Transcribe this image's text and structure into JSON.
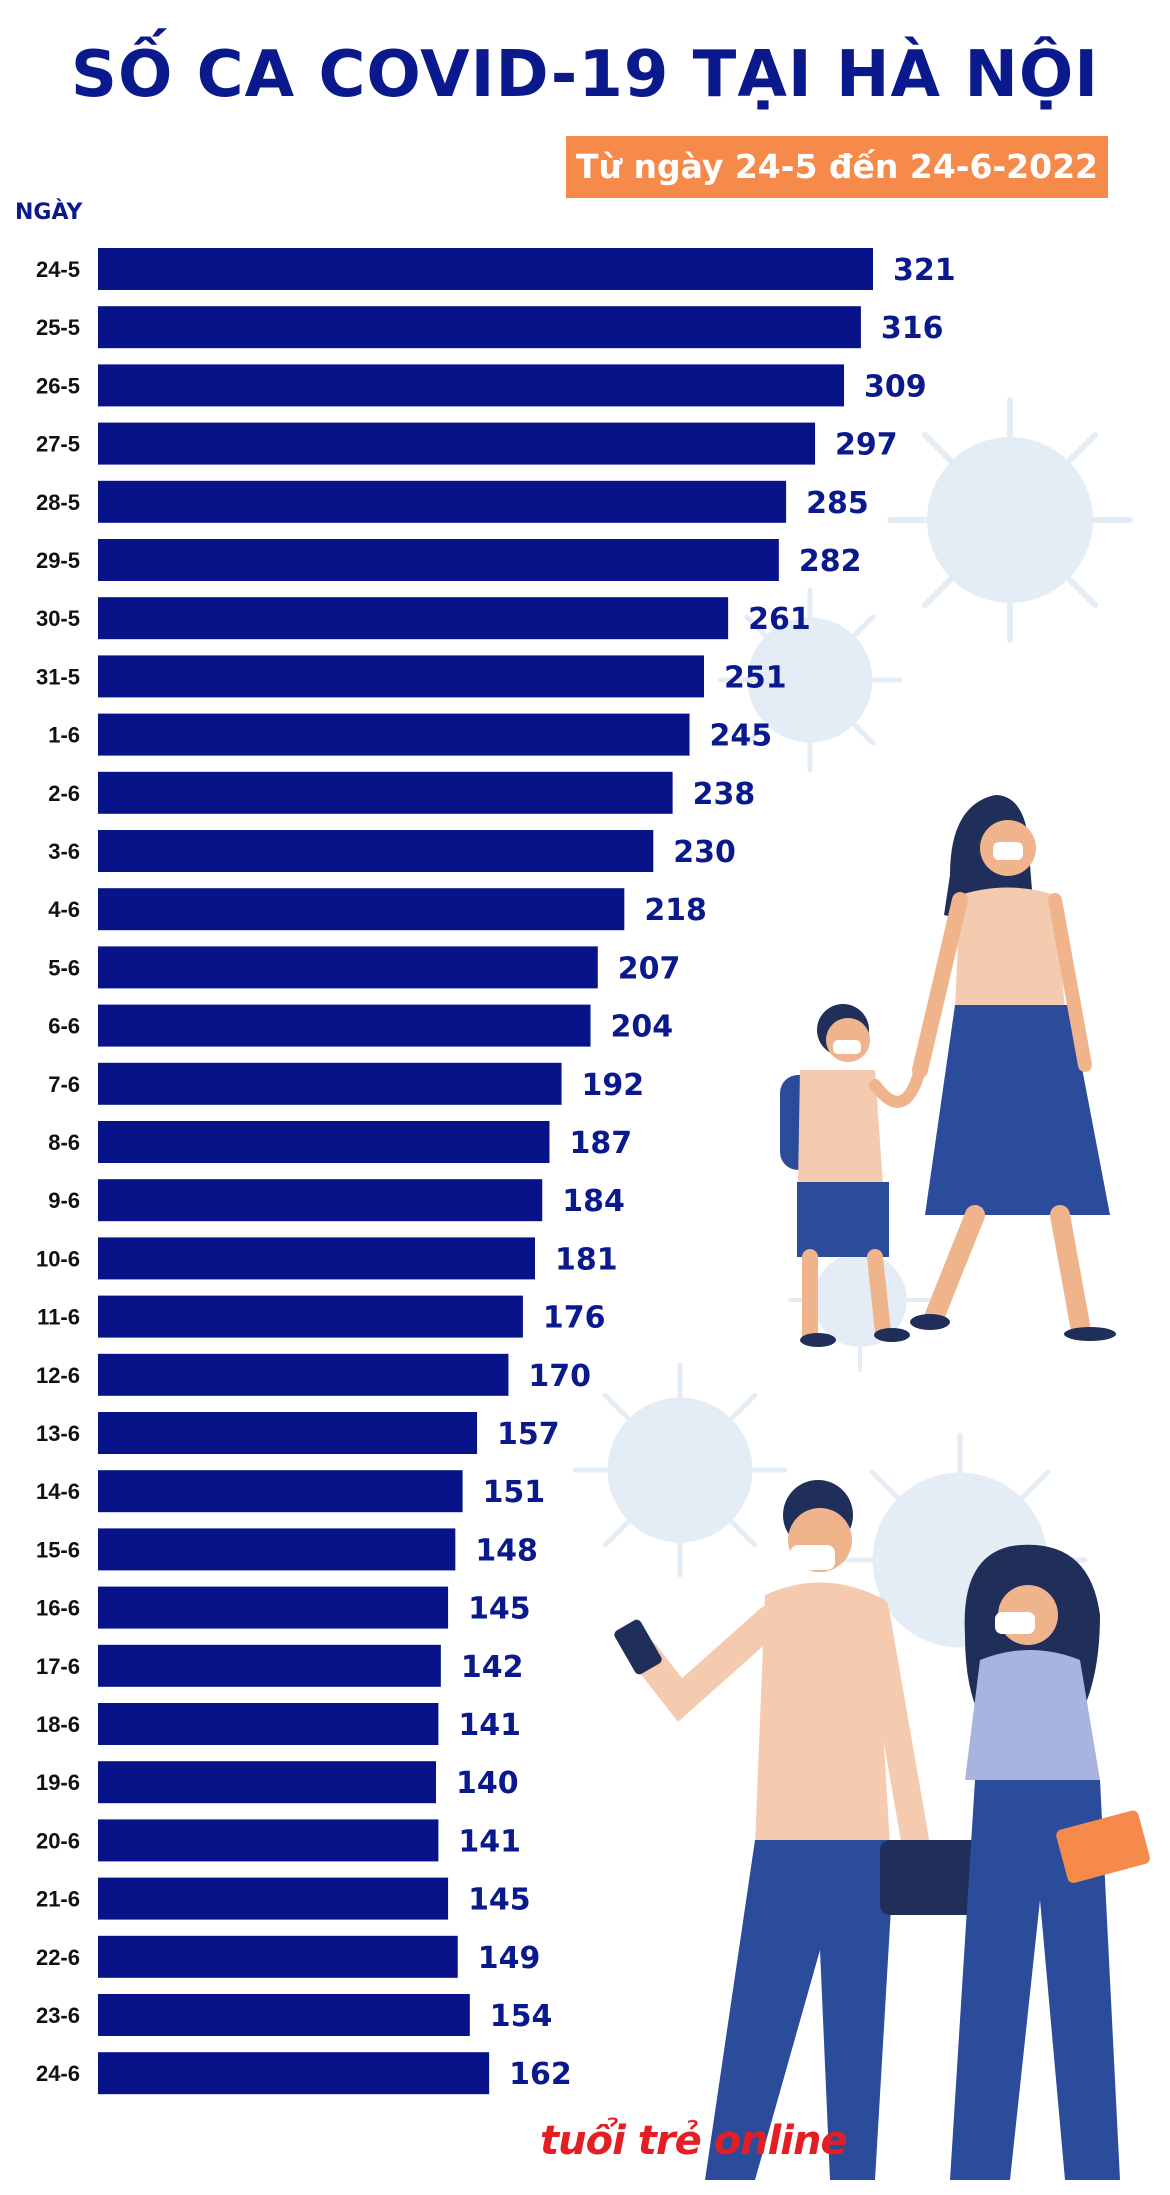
{
  "colors": {
    "bar": "#08138a",
    "title": "#0a1a8c",
    "subtitle_bg": "#f58a4b",
    "virus": "#dde8f2",
    "logo": "#e31e24"
  },
  "logo": {
    "text": "tuổi trẻ online"
  },
  "chart_data": {
    "type": "bar",
    "orientation": "horizontal",
    "title": "SỐ CA COVID-19 TẠI HÀ NỘI",
    "subtitle": "Từ ngày 24-5 đến 24-6-2022",
    "ylabel": "NGÀY",
    "xlabel": "",
    "xlim": [
      0,
      321
    ],
    "categories": [
      "24-5",
      "25-5",
      "26-5",
      "27-5",
      "28-5",
      "29-5",
      "30-5",
      "31-5",
      "1-6",
      "2-6",
      "3-6",
      "4-6",
      "5-6",
      "6-6",
      "7-6",
      "8-6",
      "9-6",
      "10-6",
      "11-6",
      "12-6",
      "13-6",
      "14-6",
      "15-6",
      "16-6",
      "17-6",
      "18-6",
      "19-6",
      "20-6",
      "21-6",
      "22-6",
      "23-6",
      "24-6"
    ],
    "values": [
      321,
      316,
      309,
      297,
      285,
      282,
      261,
      251,
      245,
      238,
      230,
      218,
      207,
      204,
      192,
      187,
      184,
      181,
      176,
      170,
      157,
      151,
      148,
      145,
      142,
      141,
      140,
      141,
      145,
      149,
      154,
      162
    ]
  }
}
